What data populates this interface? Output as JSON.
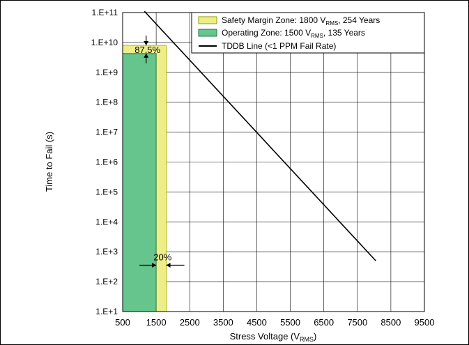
{
  "chart_data": {
    "type": "area",
    "title": "",
    "xlabel": {
      "main": "Stress Voltage (V",
      "sub": "RMS",
      "end": ")"
    },
    "ylabel": "Time to Fail (s)",
    "xlim": [
      500,
      9500
    ],
    "ylim_log10": [
      1,
      11
    ],
    "x_ticks": [
      "500",
      "1500",
      "2500",
      "3500",
      "4500",
      "5500",
      "6500",
      "7500",
      "8500",
      "9500"
    ],
    "x_tick_values": [
      500,
      1500,
      2500,
      3500,
      4500,
      5500,
      6500,
      7500,
      8500,
      9500
    ],
    "y_ticks": [
      "1.E+1",
      "1.E+2",
      "1.E+3",
      "1.E+4",
      "1.E+5",
      "1.E+6",
      "1.E+7",
      "1.E+8",
      "1.E+9",
      "1.E+10",
      "1.E+11"
    ],
    "y_tick_exponents": [
      1,
      2,
      3,
      4,
      5,
      6,
      7,
      8,
      9,
      10,
      11
    ],
    "grid": true,
    "legend_position": "top-right",
    "series": [
      {
        "kind": "zone",
        "legend": {
          "main": "Safety Margin Zone: 1800 V",
          "sub": "RMS",
          "end": ", 254 Years"
        },
        "x_range": [
          500,
          1800
        ],
        "y_top": 8000000000.0,
        "color": "#EDED8A",
        "edge": "#B8B800"
      },
      {
        "kind": "zone",
        "legend": {
          "main": "Operating Zone: 1500 V",
          "sub": "RMS",
          "end": ", 135 Years"
        },
        "x_range": [
          500,
          1500
        ],
        "y_top": 4260000000.0,
        "color": "#66C48D",
        "edge": "#1E7A46"
      },
      {
        "kind": "line",
        "legend": {
          "main": "TDDB Line (<1 PPM Fail Rate)",
          "sub": "",
          "end": ""
        },
        "points": [
          [
            1150,
            110000000000.0
          ],
          [
            8050,
            500
          ]
        ],
        "color": "#000000"
      }
    ],
    "annotations": {
      "time_margin": "87.5%",
      "voltage_margin": "20%"
    }
  }
}
